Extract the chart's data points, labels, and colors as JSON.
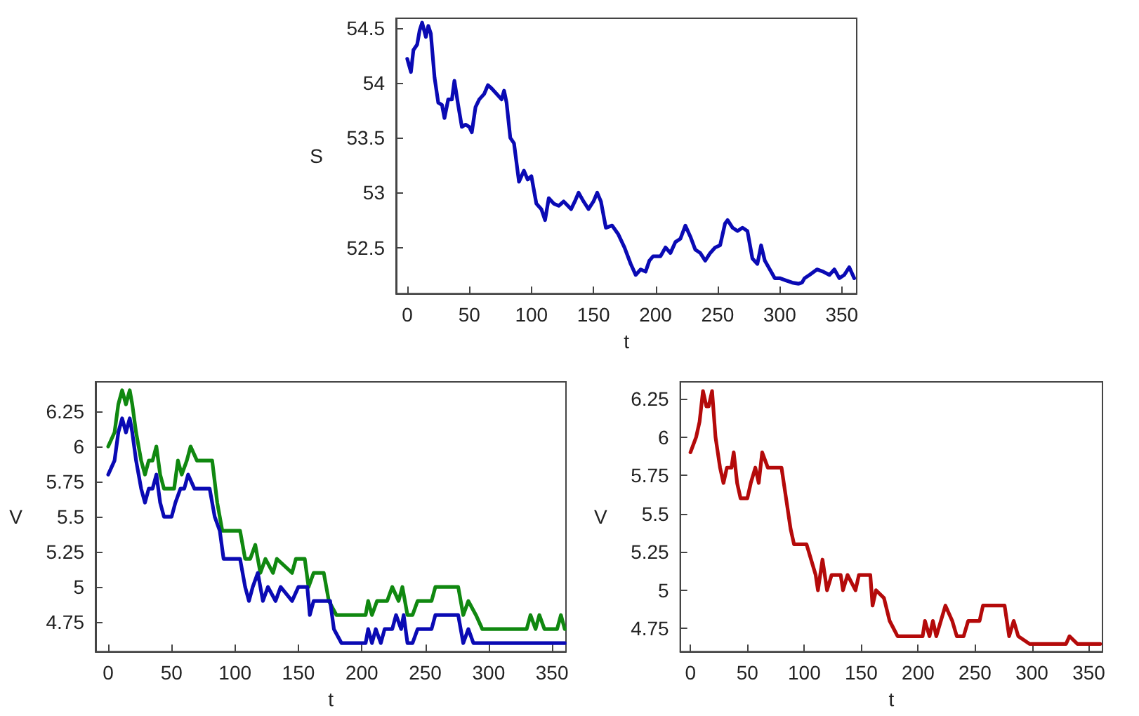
{
  "chart_data": [
    {
      "type": "line",
      "xlabel": "t",
      "ylabel": "S",
      "xlim": [
        -9,
        362
      ],
      "ylim": [
        52.08,
        54.59
      ],
      "xticks": [
        0,
        50,
        100,
        150,
        200,
        250,
        300,
        350
      ],
      "yticks": [
        52.5,
        53,
        53.5,
        54,
        54.5
      ],
      "grid": false,
      "marker": "none",
      "series": [
        {
          "color": "#0a0ab4",
          "x": [
            0,
            3,
            5,
            8,
            10,
            12,
            15,
            17,
            19,
            22,
            25,
            28,
            30,
            33,
            36,
            38,
            41,
            44,
            47,
            50,
            52,
            55,
            58,
            62,
            65,
            68,
            72,
            76,
            78,
            80,
            83,
            86,
            90,
            94,
            97,
            100,
            104,
            108,
            111,
            114,
            118,
            122,
            126,
            132,
            135,
            138,
            142,
            146,
            150,
            153,
            156,
            160,
            165,
            170,
            175,
            180,
            184,
            188,
            192,
            195,
            198,
            204,
            208,
            212,
            216,
            220,
            224,
            228,
            232,
            236,
            240,
            244,
            248,
            252,
            256,
            258,
            262,
            266,
            270,
            274,
            278,
            282,
            285,
            288,
            292,
            296,
            300,
            305,
            310,
            315,
            318,
            320,
            324,
            330,
            335,
            340,
            344,
            348,
            352,
            356,
            360
          ],
          "values": [
            54.22,
            54.1,
            54.3,
            54.35,
            54.48,
            54.55,
            54.42,
            54.52,
            54.45,
            54.05,
            53.82,
            53.8,
            53.68,
            53.85,
            53.85,
            54.02,
            53.8,
            53.6,
            53.62,
            53.6,
            53.55,
            53.78,
            53.85,
            53.9,
            53.98,
            53.95,
            53.9,
            53.85,
            53.93,
            53.82,
            53.5,
            53.45,
            53.1,
            53.2,
            53.12,
            53.15,
            52.9,
            52.85,
            52.75,
            52.95,
            52.9,
            52.88,
            52.92,
            52.85,
            52.92,
            53.0,
            52.92,
            52.85,
            52.92,
            53.0,
            52.92,
            52.68,
            52.7,
            52.62,
            52.5,
            52.35,
            52.25,
            52.3,
            52.28,
            52.38,
            52.42,
            52.42,
            52.5,
            52.45,
            52.55,
            52.58,
            52.7,
            52.6,
            52.48,
            52.45,
            52.38,
            52.45,
            52.5,
            52.52,
            52.72,
            52.75,
            52.68,
            52.65,
            52.68,
            52.65,
            52.4,
            52.35,
            52.52,
            52.38,
            52.3,
            52.22,
            52.22,
            52.2,
            52.18,
            52.17,
            52.18,
            52.22,
            52.25,
            52.3,
            52.28,
            52.25,
            52.3,
            52.22,
            52.25,
            52.32,
            52.22
          ]
        }
      ]
    },
    {
      "type": "line",
      "xlabel": "t",
      "ylabel": "V",
      "xlim": [
        -10,
        361
      ],
      "ylim": [
        4.54,
        6.46
      ],
      "xticks": [
        0,
        50,
        100,
        150,
        200,
        250,
        300,
        350
      ],
      "yticks": [
        4.75,
        5,
        5.25,
        5.5,
        5.75,
        6,
        6.25
      ],
      "grid": false,
      "marker": "none",
      "series": [
        {
          "color": "#108810",
          "x": [
            0,
            5,
            8,
            11,
            14,
            17,
            19,
            22,
            26,
            29,
            32,
            35,
            38,
            41,
            44,
            52,
            55,
            58,
            62,
            65,
            70,
            82,
            86,
            90,
            104,
            108,
            112,
            116,
            120,
            124,
            130,
            133,
            145,
            148,
            155,
            158,
            162,
            170,
            174,
            180,
            203,
            205,
            208,
            212,
            220,
            224,
            229,
            232,
            236,
            240,
            244,
            255,
            258,
            276,
            280,
            284,
            290,
            295,
            330,
            333,
            337,
            340,
            344,
            354,
            357,
            360
          ],
          "values": [
            6.0,
            6.1,
            6.3,
            6.4,
            6.3,
            6.4,
            6.3,
            6.1,
            5.9,
            5.8,
            5.9,
            5.9,
            6.0,
            5.8,
            5.7,
            5.7,
            5.9,
            5.8,
            5.9,
            6.0,
            5.9,
            5.9,
            5.6,
            5.4,
            5.4,
            5.2,
            5.2,
            5.3,
            5.1,
            5.2,
            5.1,
            5.2,
            5.1,
            5.2,
            5.2,
            5.0,
            5.1,
            5.1,
            4.9,
            4.8,
            4.8,
            4.9,
            4.8,
            4.9,
            4.9,
            5.0,
            4.9,
            5.0,
            4.8,
            4.8,
            4.9,
            4.9,
            5.0,
            5.0,
            4.8,
            4.9,
            4.8,
            4.7,
            4.7,
            4.8,
            4.7,
            4.8,
            4.7,
            4.7,
            4.8,
            4.7
          ]
        },
        {
          "color": "#0a0ab4",
          "x": [
            0,
            5,
            8,
            11,
            14,
            17,
            19,
            22,
            26,
            29,
            32,
            35,
            38,
            41,
            44,
            50,
            53,
            57,
            60,
            63,
            68,
            80,
            84,
            88,
            91,
            104,
            108,
            111,
            114,
            118,
            122,
            126,
            132,
            136,
            145,
            150,
            157,
            159,
            162,
            175,
            178,
            184,
            203,
            205,
            208,
            211,
            215,
            218,
            224,
            227,
            231,
            233,
            236,
            240,
            244,
            255,
            258,
            276,
            280,
            284,
            288,
            360
          ],
          "values": [
            5.8,
            5.9,
            6.1,
            6.2,
            6.1,
            6.2,
            6.1,
            5.9,
            5.7,
            5.6,
            5.7,
            5.7,
            5.8,
            5.6,
            5.5,
            5.5,
            5.6,
            5.7,
            5.7,
            5.8,
            5.7,
            5.7,
            5.5,
            5.4,
            5.2,
            5.2,
            5.0,
            4.9,
            5.0,
            5.1,
            4.9,
            5.0,
            4.9,
            5.0,
            4.9,
            5.0,
            5.0,
            4.8,
            4.9,
            4.9,
            4.7,
            4.6,
            4.6,
            4.7,
            4.6,
            4.7,
            4.6,
            4.7,
            4.7,
            4.8,
            4.7,
            4.8,
            4.6,
            4.6,
            4.7,
            4.7,
            4.8,
            4.8,
            4.6,
            4.7,
            4.6,
            4.6
          ]
        }
      ]
    },
    {
      "type": "line",
      "xlabel": "t",
      "ylabel": "V",
      "xlim": [
        -9,
        362
      ],
      "ylim": [
        4.6,
        6.36
      ],
      "xticks": [
        0,
        50,
        100,
        150,
        200,
        250,
        300,
        350
      ],
      "yticks": [
        4.75,
        5,
        5.25,
        5.5,
        5.75,
        6,
        6.25
      ],
      "grid": false,
      "marker": "none",
      "series": [
        {
          "color": "#b40a0a",
          "x": [
            0,
            5,
            8,
            11,
            14,
            16,
            19,
            22,
            26,
            29,
            32,
            36,
            38,
            41,
            44,
            50,
            53,
            57,
            60,
            63,
            68,
            80,
            84,
            88,
            91,
            102,
            106,
            110,
            112,
            116,
            120,
            124,
            132,
            134,
            138,
            145,
            148,
            158,
            160,
            163,
            170,
            175,
            182,
            204,
            206,
            210,
            213,
            216,
            220,
            224,
            230,
            234,
            240,
            244,
            254,
            257,
            276,
            280,
            284,
            288,
            298,
            330,
            333,
            340,
            360
          ],
          "values": [
            5.9,
            6.0,
            6.1,
            6.3,
            6.2,
            6.2,
            6.3,
            6.0,
            5.8,
            5.7,
            5.8,
            5.8,
            5.9,
            5.7,
            5.6,
            5.6,
            5.7,
            5.8,
            5.7,
            5.9,
            5.8,
            5.8,
            5.6,
            5.4,
            5.3,
            5.3,
            5.2,
            5.1,
            5.0,
            5.2,
            5.0,
            5.1,
            5.1,
            5.0,
            5.1,
            5.0,
            5.1,
            5.1,
            4.9,
            5.0,
            4.95,
            4.8,
            4.7,
            4.7,
            4.8,
            4.7,
            4.8,
            4.7,
            4.8,
            4.9,
            4.8,
            4.7,
            4.7,
            4.8,
            4.8,
            4.9,
            4.9,
            4.7,
            4.8,
            4.7,
            4.65,
            4.65,
            4.7,
            4.65,
            4.65
          ]
        }
      ]
    }
  ]
}
